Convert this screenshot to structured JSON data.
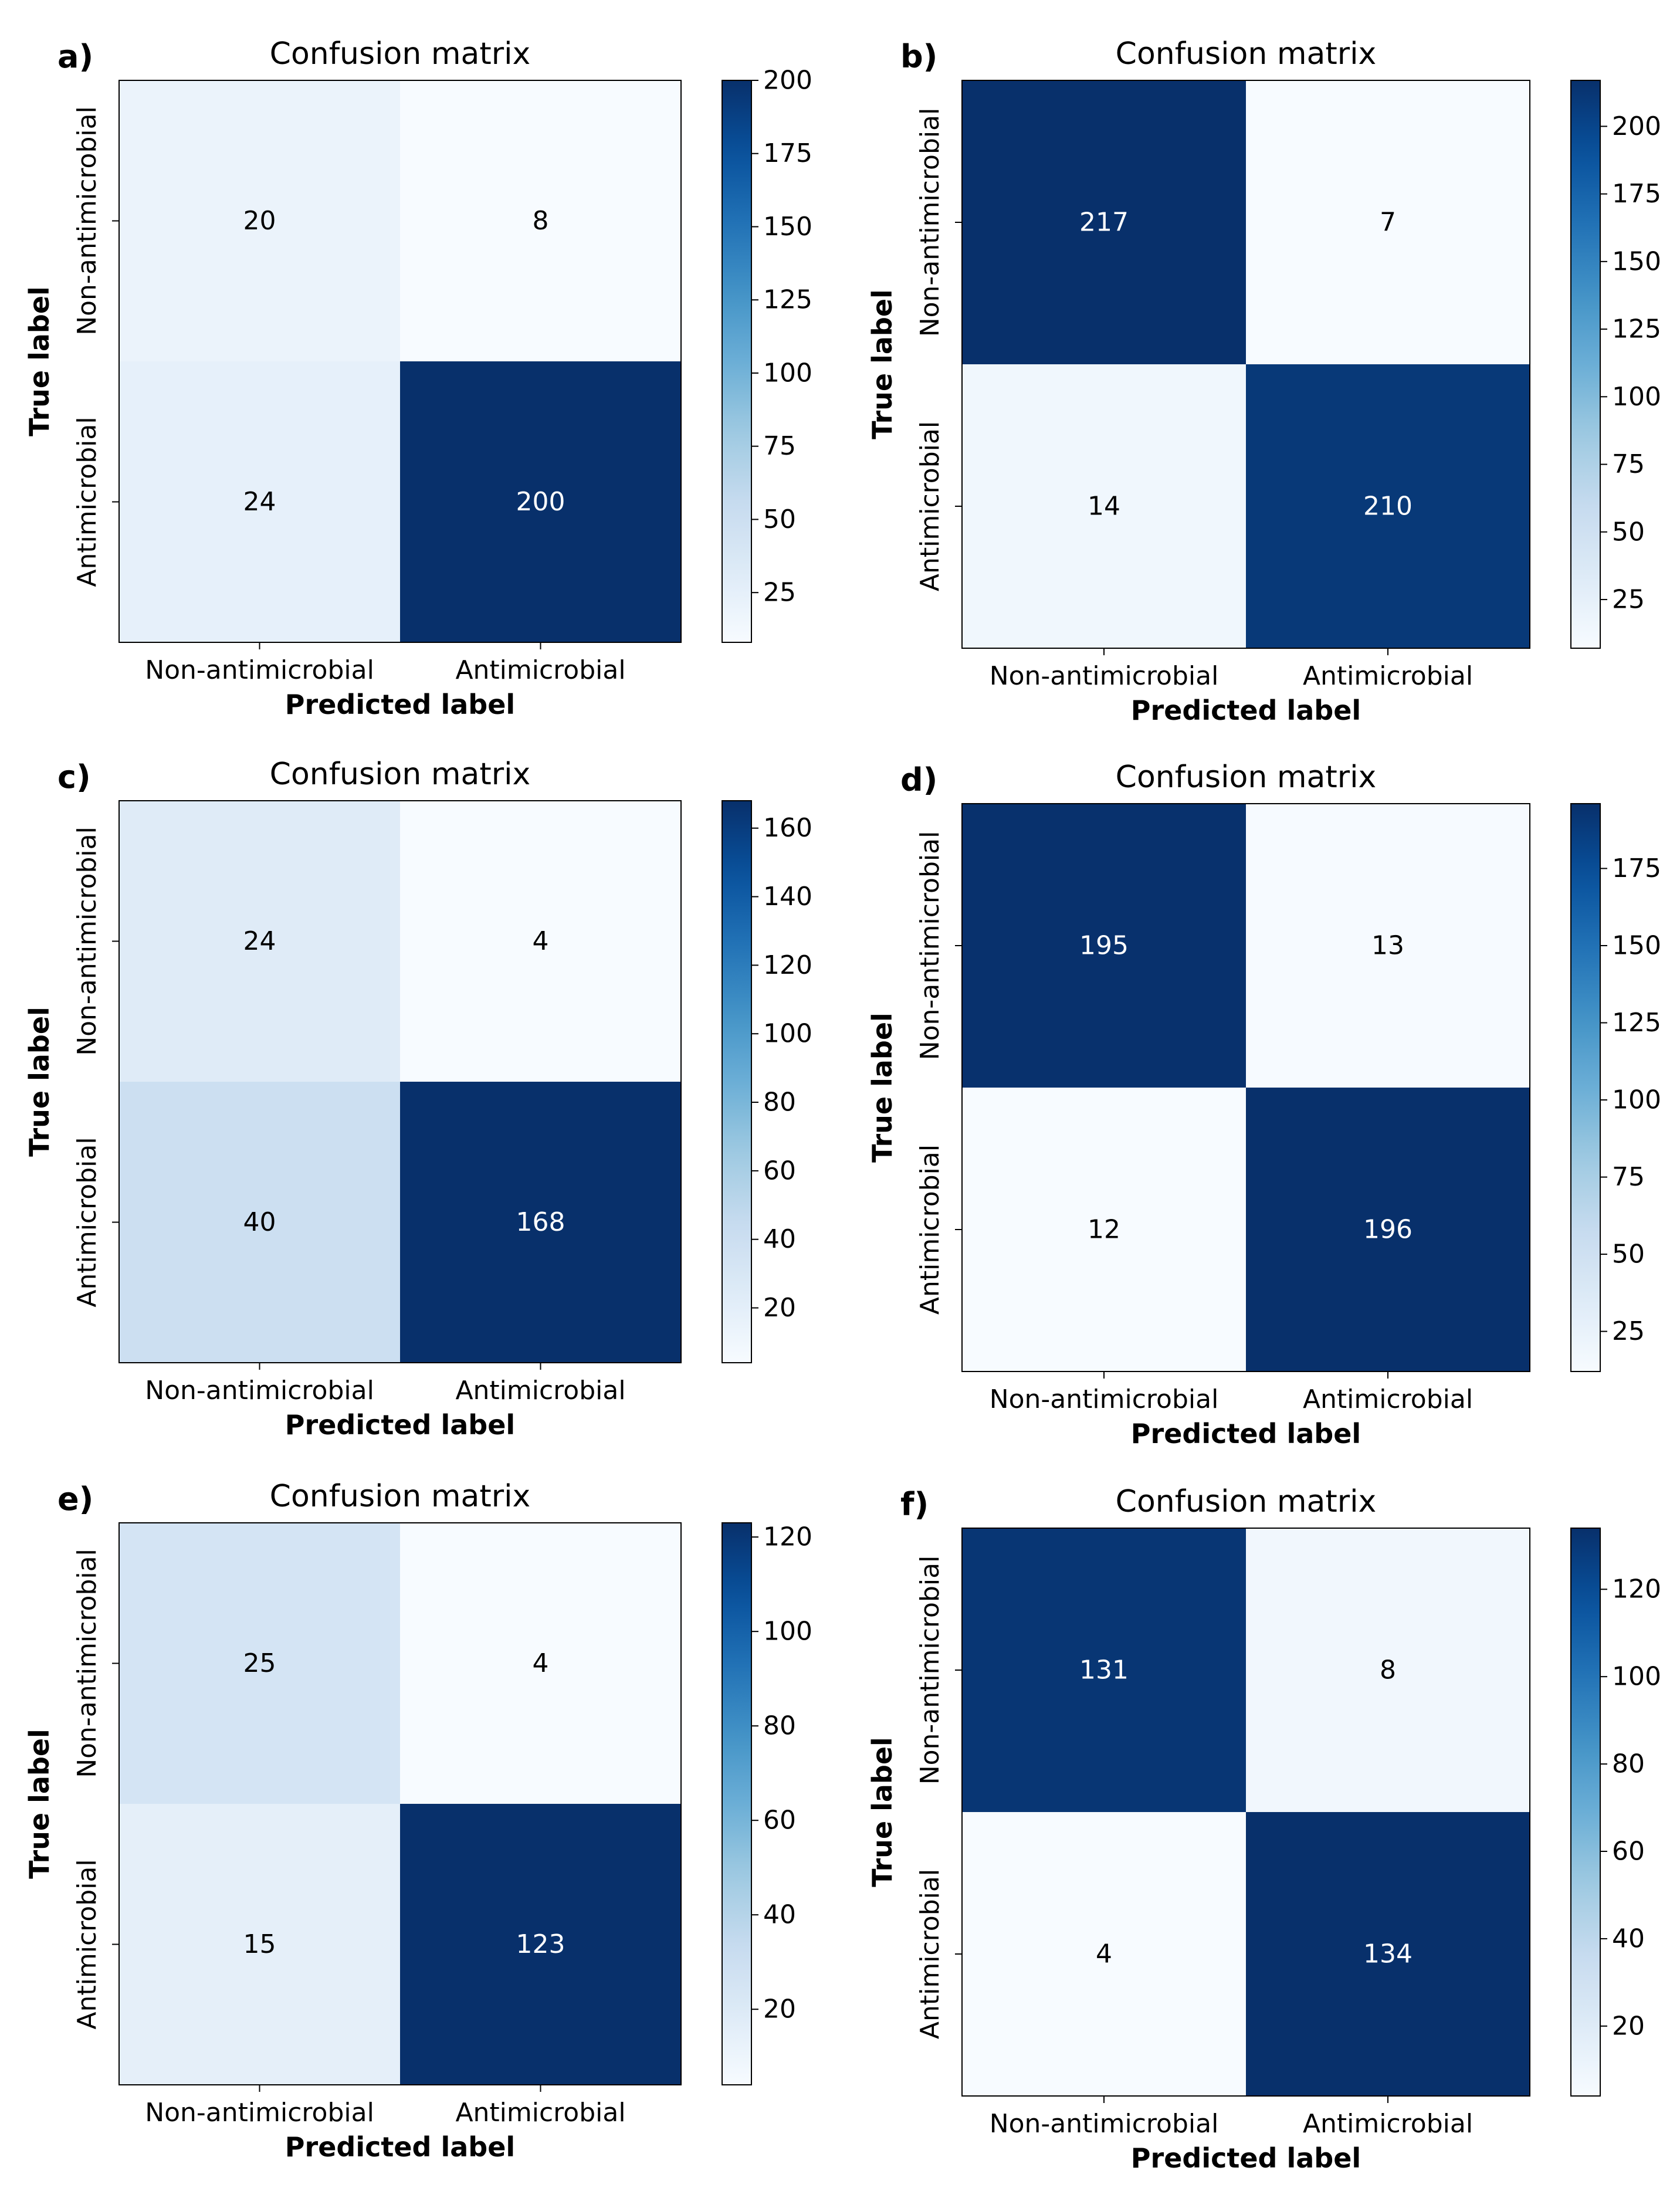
{
  "chart_data": [
    {
      "type": "heatmap",
      "panel_label": "a)",
      "title": "Confusion matrix",
      "xlabel": "Predicted label",
      "ylabel": "True label",
      "x_categories": [
        "Non-antimicrobial",
        "Antimicrobial"
      ],
      "y_categories": [
        "Non-antimicrobial",
        "Antimicrobial"
      ],
      "matrix": [
        [
          20,
          8
        ],
        [
          24,
          200
        ]
      ],
      "cell_text": [
        [
          "20",
          "8"
        ],
        [
          "24",
          "200"
        ]
      ],
      "colorbar": {
        "range": [
          8,
          200
        ],
        "ticks": [
          25,
          50,
          75,
          100,
          125,
          150,
          175,
          200
        ],
        "tick_labels": [
          "25",
          "50",
          "75",
          "100",
          "125",
          "150",
          "175",
          "200"
        ]
      }
    },
    {
      "type": "heatmap",
      "panel_label": "b)",
      "title": "Confusion matrix",
      "xlabel": "Predicted label",
      "ylabel": "True label",
      "x_categories": [
        "Non-antimicrobial",
        "Antimicrobial"
      ],
      "y_categories": [
        "Non-antimicrobial",
        "Antimicrobial"
      ],
      "matrix": [
        [
          217,
          7
        ],
        [
          14,
          210
        ]
      ],
      "cell_text": [
        [
          "217",
          "7"
        ],
        [
          "14",
          "210"
        ]
      ],
      "colorbar": {
        "range": [
          7,
          217
        ],
        "ticks": [
          25,
          50,
          75,
          100,
          125,
          150,
          175,
          200
        ],
        "tick_labels": [
          "25",
          "50",
          "75",
          "100",
          "125",
          "150",
          "175",
          "200"
        ]
      }
    },
    {
      "type": "heatmap",
      "panel_label": "c)",
      "title": "Confusion matrix",
      "xlabel": "Predicted label",
      "ylabel": "True label",
      "x_categories": [
        "Non-antimicrobial",
        "Antimicrobial"
      ],
      "y_categories": [
        "Non-antimicrobial",
        "Antimicrobial"
      ],
      "matrix": [
        [
          24,
          4
        ],
        [
          40,
          168
        ]
      ],
      "cell_text": [
        [
          "24",
          "4"
        ],
        [
          "40",
          "168"
        ]
      ],
      "colorbar": {
        "range": [
          4,
          168
        ],
        "ticks": [
          20,
          40,
          60,
          80,
          100,
          120,
          140,
          160
        ],
        "tick_labels": [
          "20",
          "40",
          "60",
          "80",
          "100",
          "120",
          "140",
          "160"
        ]
      }
    },
    {
      "type": "heatmap",
      "panel_label": "d)",
      "title": "Confusion matrix",
      "xlabel": "Predicted label",
      "ylabel": "True label",
      "x_categories": [
        "Non-antimicrobial",
        "Antimicrobial"
      ],
      "y_categories": [
        "Non-antimicrobial",
        "Antimicrobial"
      ],
      "matrix": [
        [
          195,
          13
        ],
        [
          12,
          196
        ]
      ],
      "cell_text": [
        [
          "195",
          "13"
        ],
        [
          "12",
          "196"
        ]
      ],
      "colorbar": {
        "range": [
          12,
          196
        ],
        "ticks": [
          25,
          50,
          75,
          100,
          125,
          150,
          175
        ],
        "tick_labels": [
          "25",
          "50",
          "75",
          "100",
          "125",
          "150",
          "175"
        ]
      }
    },
    {
      "type": "heatmap",
      "panel_label": "e)",
      "title": "Confusion matrix",
      "xlabel": "Predicted label",
      "ylabel": "True label",
      "x_categories": [
        "Non-antimicrobial",
        "Antimicrobial"
      ],
      "y_categories": [
        "Non-antimicrobial",
        "Antimicrobial"
      ],
      "matrix": [
        [
          25,
          4
        ],
        [
          15,
          123
        ]
      ],
      "cell_text": [
        [
          "25",
          "4"
        ],
        [
          "15",
          "123"
        ]
      ],
      "colorbar": {
        "range": [
          4,
          123
        ],
        "ticks": [
          20,
          40,
          60,
          80,
          100,
          120
        ],
        "tick_labels": [
          "20",
          "40",
          "60",
          "80",
          "100",
          "120"
        ]
      }
    },
    {
      "type": "heatmap",
      "panel_label": "f)",
      "title": "Confusion matrix",
      "xlabel": "Predicted label",
      "ylabel": "True label",
      "x_categories": [
        "Non-antimicrobial",
        "Antimicrobial"
      ],
      "y_categories": [
        "Non-antimicrobial",
        "Antimicrobial"
      ],
      "matrix": [
        [
          131,
          8
        ],
        [
          4,
          134
        ]
      ],
      "cell_text": [
        [
          "131",
          "8"
        ],
        [
          "4",
          "134"
        ]
      ],
      "colorbar": {
        "range": [
          4,
          134
        ],
        "ticks": [
          20,
          40,
          60,
          80,
          100,
          120
        ],
        "tick_labels": [
          "20",
          "40",
          "60",
          "80",
          "100",
          "120"
        ]
      }
    }
  ]
}
